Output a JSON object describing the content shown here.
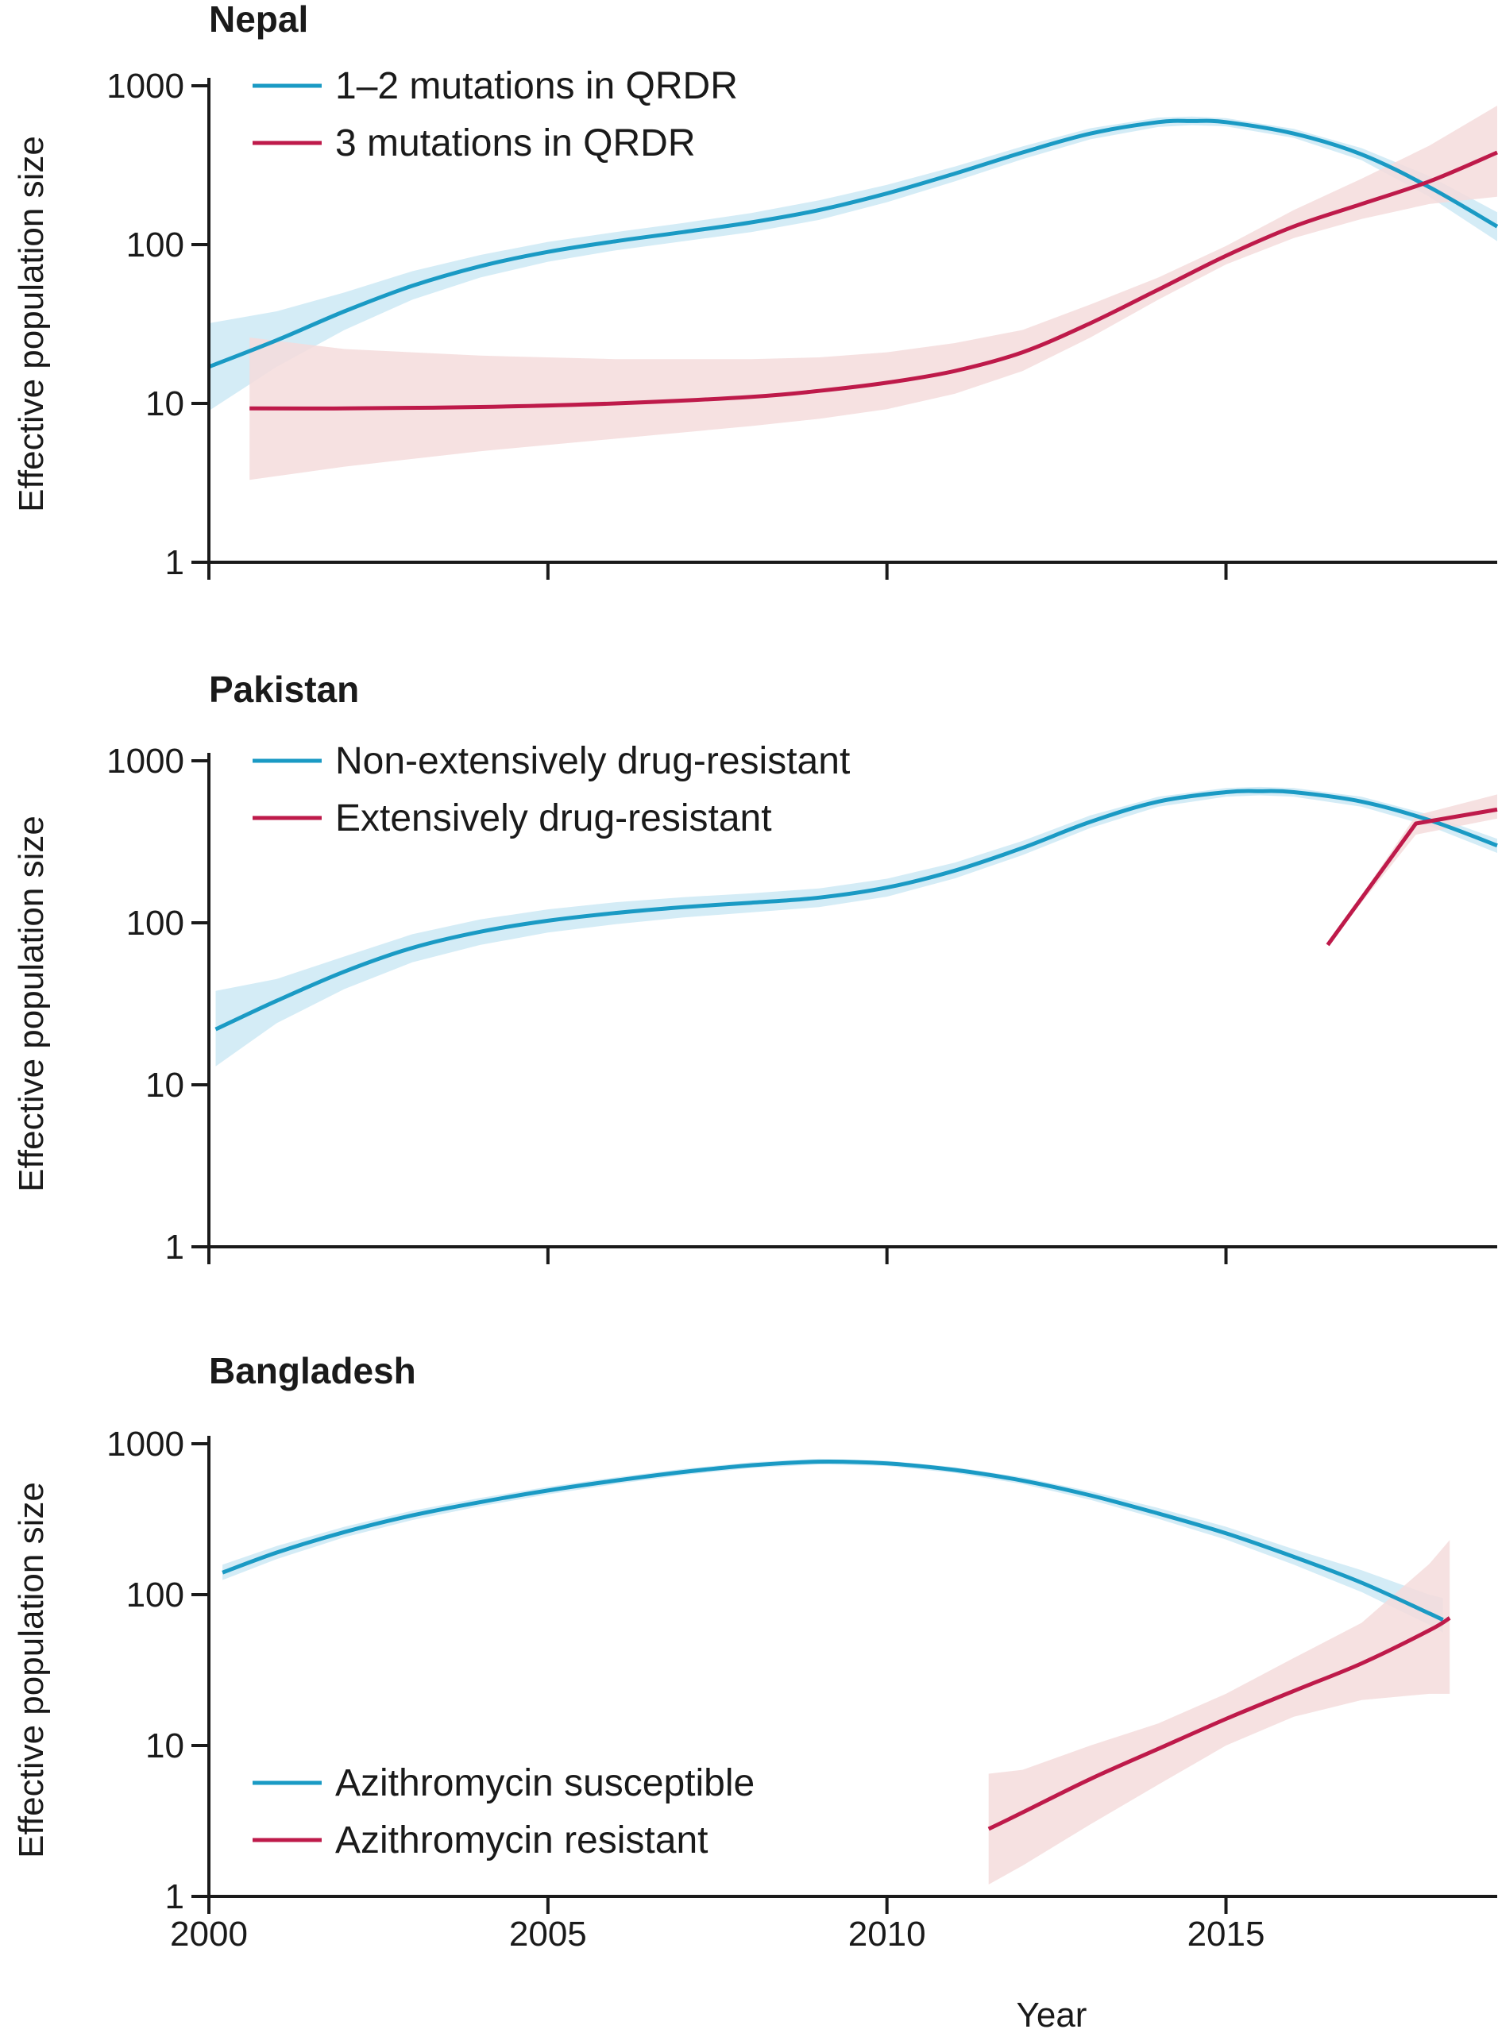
{
  "colors": {
    "blue": "#1a9ac4",
    "red": "#be1a4a",
    "blue_band": "#cde9f5",
    "red_band": "#f5dcdc"
  },
  "chart_data": [
    {
      "type": "line",
      "title": "Nepal",
      "xlabel": "",
      "ylabel": "Effective population size",
      "xlim": [
        2000,
        2019
      ],
      "ylim": [
        1,
        1000
      ],
      "yscale": "log",
      "yticks": [
        1,
        10,
        100,
        1000
      ],
      "ytick_labels": [
        "1",
        "10",
        "100",
        "1000"
      ],
      "xticks": [
        2000,
        2005,
        2010,
        2015
      ],
      "xtick_labels": [],
      "legend_position": "top-left",
      "series": [
        {
          "name": "1–2 mutations in QRDR",
          "color": "blue",
          "x": [
            2000,
            2001,
            2002,
            2003,
            2004,
            2005,
            2006,
            2007,
            2008,
            2009,
            2010,
            2011,
            2012,
            2013,
            2014,
            2014.5,
            2015,
            2016,
            2017,
            2018,
            2019
          ],
          "y": [
            17,
            25,
            38,
            55,
            73,
            90,
            105,
            120,
            138,
            165,
            210,
            280,
            380,
            500,
            590,
            600,
            590,
            500,
            370,
            230,
            130
          ],
          "lower": [
            9,
            17,
            29,
            45,
            62,
            78,
            92,
            105,
            120,
            143,
            185,
            250,
            345,
            460,
            550,
            565,
            555,
            470,
            340,
            200,
            105
          ],
          "upper": [
            32,
            38,
            50,
            68,
            86,
            104,
            120,
            137,
            158,
            190,
            238,
            310,
            415,
            540,
            630,
            640,
            625,
            535,
            405,
            270,
            160
          ]
        },
        {
          "name": "3 mutations in QRDR",
          "color": "red",
          "x": [
            2000.6,
            2002,
            2004,
            2006,
            2008,
            2009,
            2010,
            2011,
            2012,
            2013,
            2014,
            2015,
            2016,
            2017,
            2018,
            2019
          ],
          "y": [
            9.3,
            9.3,
            9.5,
            10,
            11,
            12,
            13.5,
            16,
            21,
            32,
            52,
            85,
            130,
            180,
            250,
            380
          ],
          "lower": [
            3.3,
            4,
            5,
            6,
            7.2,
            8,
            9.2,
            11.5,
            16,
            26,
            45,
            75,
            110,
            145,
            180,
            200
          ],
          "upper": [
            26,
            22,
            20,
            19,
            19,
            19.5,
            21,
            24,
            29,
            42,
            62,
            98,
            165,
            260,
            420,
            750
          ]
        }
      ]
    },
    {
      "type": "line",
      "title": "Pakistan",
      "xlabel": "",
      "ylabel": "Effective population size",
      "xlim": [
        2000,
        2019
      ],
      "ylim": [
        1,
        1000
      ],
      "yscale": "log",
      "yticks": [
        1,
        10,
        100,
        1000
      ],
      "ytick_labels": [
        "1",
        "10",
        "100",
        "1000"
      ],
      "xticks": [
        2000,
        2005,
        2010,
        2015
      ],
      "xtick_labels": [],
      "legend_position": "top-left",
      "series": [
        {
          "name": "Non-extensively drug-resistant",
          "color": "blue",
          "x": [
            2000.1,
            2001,
            2002,
            2003,
            2004,
            2005,
            2006,
            2007,
            2008,
            2009,
            2010,
            2011,
            2012,
            2013,
            2014,
            2015,
            2015.5,
            2016,
            2017,
            2018,
            2019
          ],
          "y": [
            22,
            33,
            50,
            70,
            88,
            103,
            115,
            125,
            133,
            143,
            165,
            210,
            290,
            420,
            560,
            640,
            650,
            640,
            560,
            430,
            300
          ],
          "lower": [
            13,
            24,
            39,
            57,
            73,
            87,
            98,
            108,
            116,
            125,
            145,
            188,
            262,
            385,
            520,
            600,
            612,
            600,
            520,
            395,
            270
          ],
          "upper": [
            38,
            45,
            62,
            85,
            105,
            121,
            134,
            144,
            152,
            163,
            187,
            235,
            320,
            460,
            600,
            680,
            690,
            680,
            600,
            465,
            330
          ]
        },
        {
          "name": "Extensively drug-resistant",
          "color": "red",
          "x": [
            2016.5,
            2017.8,
            2019
          ],
          "y": [
            73,
            410,
            500
          ],
          "lower": [
            73,
            350,
            440
          ],
          "upper": [
            73,
            460,
            620
          ]
        }
      ]
    },
    {
      "type": "line",
      "title": "Bangladesh",
      "xlabel": "Year",
      "ylabel": "Effective population size",
      "xlim": [
        2000,
        2019
      ],
      "ylim": [
        1,
        1000
      ],
      "yscale": "log",
      "yticks": [
        1,
        10,
        100,
        1000
      ],
      "ytick_labels": [
        "1",
        "10",
        "100",
        "1000"
      ],
      "xticks": [
        2000,
        2005,
        2010,
        2015
      ],
      "xtick_labels": [
        "2000",
        "2005",
        "2010",
        "2015"
      ],
      "legend_position": "bottom-left",
      "series": [
        {
          "name": "Azithromycin susceptible",
          "color": "blue",
          "x": [
            2000.2,
            2001,
            2002,
            2003,
            2004,
            2005,
            2006,
            2007,
            2008,
            2009,
            2010,
            2011,
            2012,
            2013,
            2014,
            2015,
            2016,
            2017,
            2018,
            2018.2
          ],
          "y": [
            140,
            190,
            260,
            335,
            410,
            490,
            570,
            650,
            720,
            760,
            740,
            670,
            570,
            455,
            345,
            255,
            178,
            120,
            75,
            68
          ],
          "lower": [
            125,
            172,
            240,
            312,
            385,
            462,
            540,
            620,
            690,
            730,
            712,
            640,
            540,
            425,
            318,
            232,
            158,
            104,
            63,
            56
          ],
          "upper": [
            158,
            210,
            282,
            360,
            437,
            518,
            600,
            683,
            755,
            795,
            772,
            700,
            600,
            485,
            375,
            282,
            200,
            145,
            100,
            95
          ]
        },
        {
          "name": "Azithromycin resistant",
          "color": "red",
          "x": [
            2011.5,
            2012,
            2013,
            2014,
            2015,
            2016,
            2017,
            2018,
            2018.3
          ],
          "y": [
            2.8,
            3.6,
            6,
            9.5,
            15,
            23,
            35,
            58,
            70
          ],
          "lower": [
            1.2,
            1.6,
            3,
            5.5,
            10,
            15.5,
            20,
            22,
            22
          ],
          "upper": [
            6.5,
            6.9,
            10,
            14,
            22,
            38,
            65,
            160,
            230
          ]
        }
      ]
    }
  ]
}
